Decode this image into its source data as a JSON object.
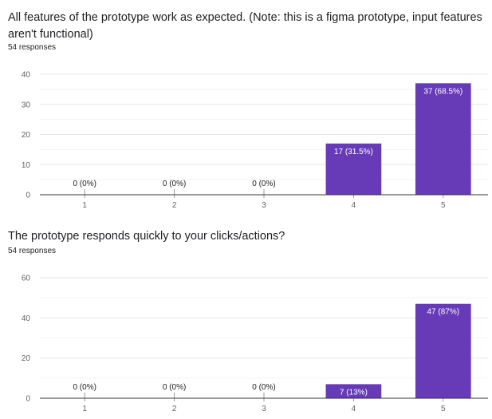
{
  "questions": [
    {
      "title": "All features of the prototype work as expected. (Note: this is a figma prototype, input features aren't functional)",
      "responses": "54 responses"
    },
    {
      "title": "The prototype responds quickly to your clicks/actions?",
      "responses": "54 responses"
    }
  ],
  "colors": {
    "bar": "#673ab7",
    "gridline": "#e6e6e6",
    "baseline": "#333333",
    "tick_text": "#5f6368",
    "label_inside": "#ffffff",
    "label_outside": "#202124"
  },
  "chart_data": [
    {
      "type": "bar",
      "categories": [
        "1",
        "2",
        "3",
        "4",
        "5"
      ],
      "values": [
        0,
        0,
        0,
        17,
        37
      ],
      "data_labels": [
        "0 (0%)",
        "0 (0%)",
        "0 (0%)",
        "17 (31.5%)",
        "37 (68.5%)"
      ],
      "ylim": [
        0,
        40
      ],
      "yticks": [
        0,
        10,
        20,
        30,
        40
      ],
      "grid": true,
      "title": "All features of the prototype work as expected. (Note: this is a figma prototype, input features aren't functional)"
    },
    {
      "type": "bar",
      "categories": [
        "1",
        "2",
        "3",
        "4",
        "5"
      ],
      "values": [
        0,
        0,
        0,
        7,
        47
      ],
      "data_labels": [
        "0 (0%)",
        "0 (0%)",
        "0 (0%)",
        "7 (13%)",
        "47 (87%)"
      ],
      "ylim": [
        0,
        60
      ],
      "yticks": [
        0,
        20,
        40,
        60
      ],
      "grid": true,
      "title": "The prototype responds quickly to your clicks/actions?"
    }
  ]
}
